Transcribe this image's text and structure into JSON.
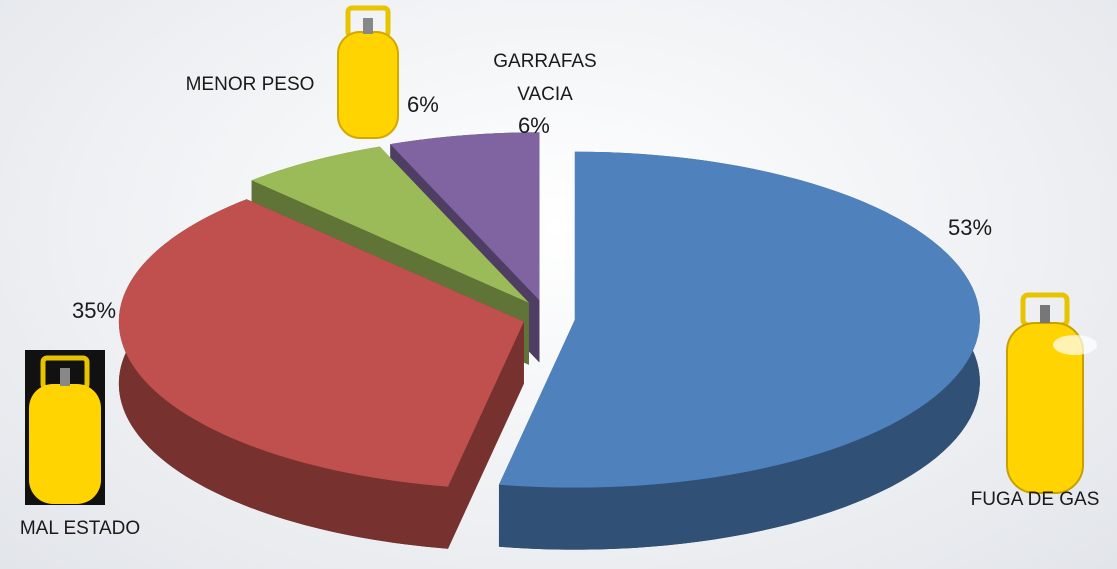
{
  "chart_data": {
    "type": "pie3d",
    "categories": [
      "FUGA DE GAS",
      "MAL ESTADO",
      "MENOR PESO",
      "GARRAFAS VACIA"
    ],
    "values": [
      53,
      35,
      6,
      6
    ],
    "value_labels": [
      "53%",
      "35%",
      "6%",
      "6%"
    ],
    "colors": [
      "#4f81bd",
      "#c0504d",
      "#9bbb59",
      "#8064a2"
    ]
  }
}
